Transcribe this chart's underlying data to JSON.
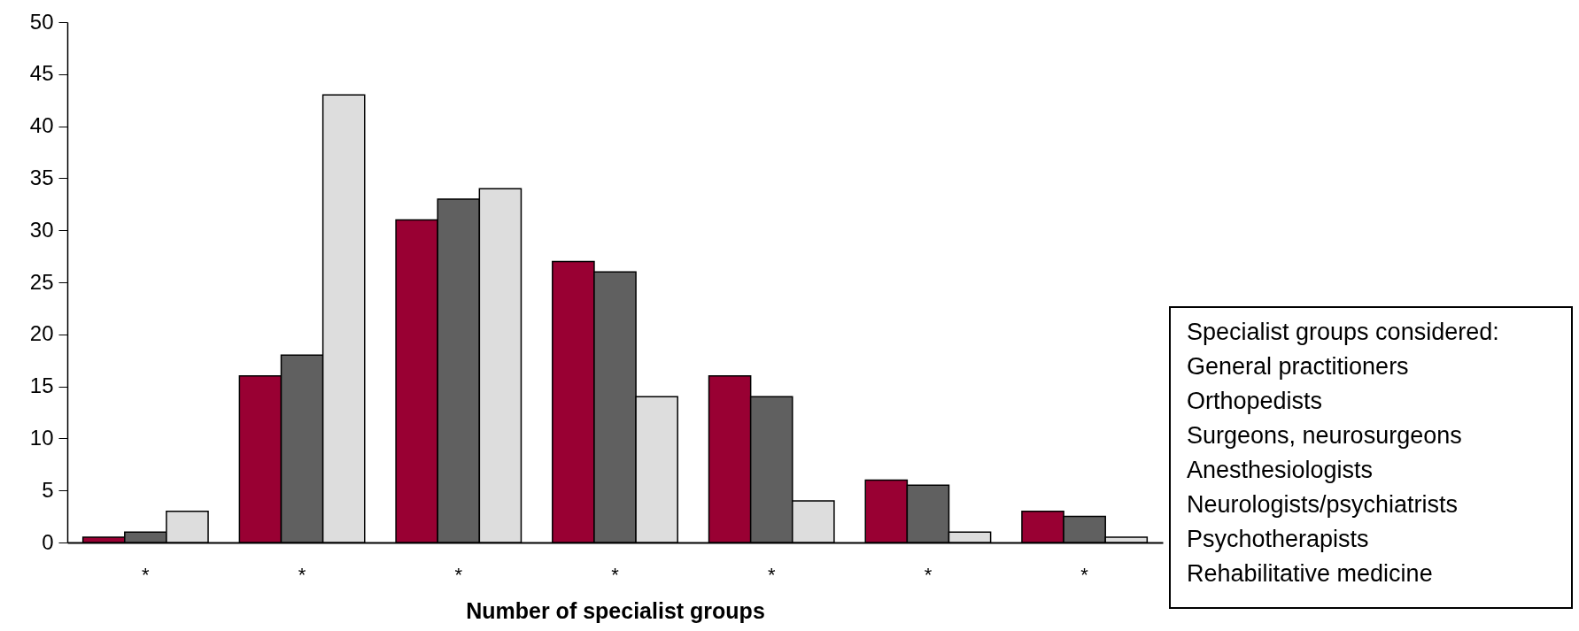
{
  "chart_data": {
    "type": "bar",
    "xlabel": "Number of specialist groups",
    "categories": [
      "*",
      "*",
      "*",
      "*",
      "*",
      "*",
      "*"
    ],
    "series": [
      {
        "color": "#990033",
        "values": [
          0.5,
          16,
          31,
          27,
          16,
          6,
          3
        ]
      },
      {
        "color": "#606060",
        "values": [
          1,
          18,
          33,
          26,
          14,
          5.5,
          2.5
        ]
      },
      {
        "color": "#dddddd",
        "values": [
          3,
          43,
          34,
          14,
          4,
          1,
          0.5
        ]
      }
    ],
    "ylim": [
      0,
      50
    ],
    "yticks": [
      0,
      5,
      10,
      15,
      20,
      25,
      30,
      35,
      40,
      45,
      50
    ],
    "grid": false,
    "annotations": [
      "Specialist groups considered:",
      "General practitioners",
      "Orthopedists",
      "Surgeons, neurosurgeons",
      "Anesthesiologists",
      "Neurologists/psychiatrists",
      "Psychotherapists",
      "Rehabilitative medicine"
    ]
  }
}
